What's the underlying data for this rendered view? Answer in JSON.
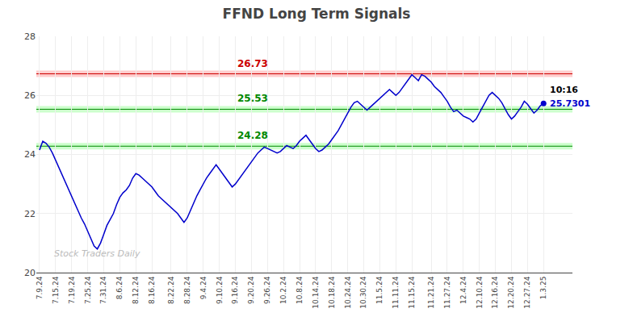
{
  "chart_data": {
    "type": "line",
    "title": "FFND Long Term Signals",
    "categories": [
      "7.9.24",
      null,
      null,
      null,
      null,
      "7.15.24",
      null,
      null,
      null,
      null,
      "7.19.24",
      null,
      null,
      null,
      null,
      "7.25.24",
      null,
      null,
      null,
      null,
      "7.31.24",
      null,
      null,
      null,
      null,
      "8.6.24",
      null,
      null,
      null,
      null,
      "8.12.24",
      null,
      null,
      null,
      null,
      "8.16.24",
      null,
      null,
      null,
      null,
      null,
      "8.22.24",
      null,
      null,
      null,
      null,
      "8.28.24",
      null,
      null,
      null,
      null,
      "9.4.24",
      null,
      null,
      null,
      null,
      "9.10.24",
      null,
      null,
      null,
      null,
      "9.16.24",
      null,
      null,
      null,
      null,
      "9.20.24",
      null,
      null,
      null,
      null,
      "9.26.24",
      null,
      null,
      null,
      null,
      "10.2.24",
      null,
      null,
      null,
      null,
      "10.8.24",
      null,
      null,
      null,
      null,
      "10.14.24",
      null,
      null,
      null,
      null,
      "10.18.24",
      null,
      null,
      null,
      null,
      "10.24.24",
      null,
      null,
      null,
      null,
      "10.30.24",
      null,
      null,
      null,
      null,
      "11.5.24",
      null,
      null,
      null,
      null,
      "11.11.24",
      null,
      null,
      null,
      null,
      "11.15.24",
      null,
      null,
      null,
      null,
      null,
      "11.21.24",
      null,
      null,
      null,
      null,
      "11.27.24",
      null,
      null,
      null,
      null,
      "12.4.24",
      null,
      null,
      null,
      null,
      "12.10.24",
      null,
      null,
      null,
      null,
      "12.16.24",
      null,
      null,
      null,
      null,
      "12.20.24",
      null,
      null,
      null,
      null,
      "12.27.24",
      null,
      null,
      null,
      null,
      "1.3.25"
    ],
    "values": [
      24.15,
      24.45,
      24.38,
      24.25,
      24.05,
      23.8,
      23.55,
      23.3,
      23.1,
      22.8,
      22.55,
      22.3,
      22.1,
      21.85,
      21.65,
      21.4,
      21.1,
      20.9,
      20.8,
      21.0,
      21.3,
      21.6,
      21.8,
      22.0,
      22.3,
      22.55,
      22.7,
      22.8,
      22.95,
      23.2,
      23.35,
      23.3,
      23.2,
      23.1,
      23.0,
      22.9,
      22.75,
      22.6,
      22.5,
      22.4,
      22.3,
      22.2,
      22.1,
      22.0,
      21.85,
      21.7,
      21.85,
      22.1,
      22.4,
      22.6,
      22.8,
      23.0,
      23.2,
      23.35,
      23.5,
      23.65,
      23.5,
      23.35,
      23.2,
      23.05,
      22.9,
      23.0,
      23.15,
      23.3,
      23.45,
      23.6,
      23.75,
      23.9,
      24.05,
      24.15,
      24.25,
      24.2,
      24.15,
      24.1,
      24.05,
      24.1,
      24.2,
      24.3,
      24.25,
      24.2,
      24.3,
      24.45,
      24.55,
      24.65,
      24.5,
      24.35,
      24.2,
      24.1,
      24.15,
      24.25,
      24.35,
      24.5,
      24.65,
      24.8,
      25.0,
      25.2,
      25.4,
      25.6,
      25.75,
      25.8,
      25.7,
      25.6,
      25.5,
      25.6,
      25.7,
      25.8,
      25.9,
      26.0,
      26.1,
      26.2,
      26.1,
      26.0,
      26.1,
      26.25,
      26.4,
      26.55,
      26.7,
      26.6,
      26.5,
      26.7,
      26.65,
      26.55,
      26.45,
      26.3,
      26.2,
      26.1,
      25.95,
      25.8,
      25.6,
      25.45,
      25.5,
      25.4,
      25.3,
      25.25,
      25.2,
      25.1,
      25.2,
      25.4,
      25.6,
      25.8,
      26.0,
      26.1,
      26.0,
      25.9,
      25.75,
      25.55,
      25.35,
      25.2,
      25.3,
      25.45,
      25.6,
      25.8,
      25.7,
      25.55,
      25.4,
      25.5,
      25.65,
      25.73
    ],
    "color": "#0000cc",
    "ylim": [
      20,
      28
    ],
    "yticks": [
      20,
      22,
      24,
      26,
      28
    ],
    "grid": true,
    "reference_lines": [
      {
        "value": 26.73,
        "label": "26.73",
        "color": "#cc0000",
        "band_color": "#ffcccc"
      },
      {
        "value": 25.53,
        "label": "25.53",
        "color": "#008800",
        "band_color": "#ccffcc"
      },
      {
        "value": 24.28,
        "label": "24.28",
        "color": "#008800",
        "band_color": "#ccffcc"
      }
    ],
    "last_time": "10:16",
    "last_price": 25.7301,
    "watermark": "Stock Traders Daily"
  }
}
